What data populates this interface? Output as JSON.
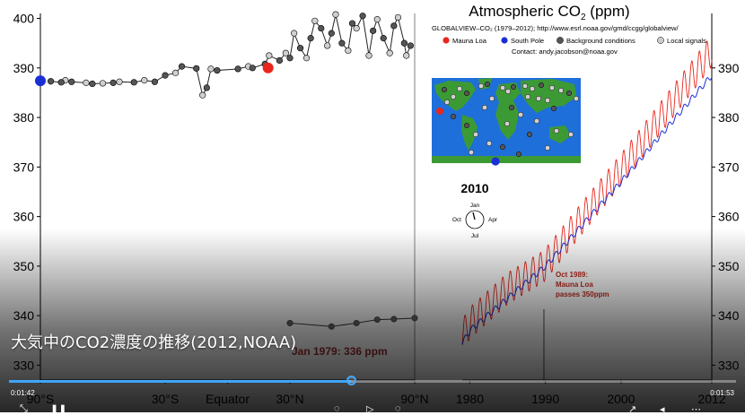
{
  "video": {
    "title": "大気中のCO2濃度の推移(2012,NOAA)",
    "time_elapsed": "0:01:42",
    "time_total": "0:01:53",
    "progress": 0.47
  },
  "header": {
    "title": "Atmospheric CO",
    "title_sub": "2",
    "title_unit": " (ppm)",
    "source": "GLOBALVIEW–CO₂ (1979–2012); http://www.esrl.noaa.gov/gmd/ccgg/globalview/",
    "contact": "Contact: andy.jacobson@noaa.gov"
  },
  "legend": [
    {
      "label": "Mauna Loa",
      "color": "#e8261c"
    },
    {
      "label": "South Pole",
      "color": "#1b2fd6"
    },
    {
      "label": "Background conditions",
      "color": "#555555"
    },
    {
      "label": "Local signals",
      "color": "#cccccc"
    }
  ],
  "year_label": "2010",
  "clock": {
    "top": "Jan",
    "left": "Oct",
    "right": "Apr",
    "bottom": "Jul"
  },
  "annotations": {
    "oct1989": [
      "Oct 1989:",
      "Mauna Loa",
      "passes 350ppm"
    ],
    "jan1979": "Jan 1979: 336 ppm"
  },
  "chart_data": [
    {
      "type": "scatter",
      "title": "",
      "xlabel": "",
      "ylabel": "",
      "x_ticks": [
        "90°S",
        "30°S",
        "Equator",
        "30°N",
        "90°N"
      ],
      "y_ticks": [
        330,
        340,
        350,
        360,
        370,
        380,
        390,
        400
      ],
      "ylim": [
        327,
        401
      ],
      "series": [
        {
          "name": "Background conditions",
          "points": [
            [
              -85,
              387.3
            ],
            [
              -80,
              387.1
            ],
            [
              -75,
              387.2
            ],
            [
              -65,
              386.8
            ],
            [
              -55,
              387.0
            ],
            [
              -45,
              387.1
            ],
            [
              -35,
              387.2
            ],
            [
              -30,
              388.5
            ],
            [
              -22,
              390.3
            ],
            [
              -15,
              389.9
            ],
            [
              -10,
              386.0
            ],
            [
              -5,
              389.5
            ],
            [
              5,
              389.8
            ],
            [
              12,
              390.0
            ],
            [
              18,
              390.8
            ],
            [
              25,
              391.5
            ],
            [
              30,
              392.0
            ],
            [
              35,
              394.0
            ],
            [
              40,
              396.0
            ],
            [
              45,
              398.0
            ],
            [
              50,
              397.0
            ],
            [
              55,
              395.0
            ],
            [
              60,
              399.0
            ],
            [
              65,
              400.5
            ],
            [
              70,
              397.5
            ],
            [
              75,
              396.0
            ],
            [
              80,
              398.5
            ],
            [
              85,
              395.0
            ],
            [
              88,
              394.5
            ]
          ]
        },
        {
          "name": "Local signals",
          "points": [
            [
              -78,
              387.5
            ],
            [
              -68,
              387.0
            ],
            [
              -60,
              386.9
            ],
            [
              -52,
              387.2
            ],
            [
              -40,
              387.5
            ],
            [
              -25,
              389.0
            ],
            [
              -12,
              384.5
            ],
            [
              -8,
              389.8
            ],
            [
              10,
              390.3
            ],
            [
              20,
              392.5
            ],
            [
              28,
              393.0
            ],
            [
              32,
              397.0
            ],
            [
              38,
              392.0
            ],
            [
              42,
              399.5
            ],
            [
              48,
              394.5
            ],
            [
              52,
              400.8
            ],
            [
              58,
              393.5
            ],
            [
              62,
              398.0
            ],
            [
              68,
              392.5
            ],
            [
              72,
              399.8
            ],
            [
              78,
              393.0
            ],
            [
              82,
              400.2
            ],
            [
              86,
              392.5
            ]
          ]
        },
        {
          "name": "Mauna Loa",
          "points": [
            [
              19.5,
              390.0
            ]
          ]
        },
        {
          "name": "South Pole",
          "points": [
            [
              -90,
              387.4
            ]
          ]
        },
        {
          "name": "Jan 1979 profile",
          "points": [
            [
              30,
              338.5
            ],
            [
              50,
              337.8
            ],
            [
              62,
              338.5
            ],
            [
              72,
              339.2
            ],
            [
              80,
              339.3
            ],
            [
              90,
              339.5
            ]
          ]
        }
      ]
    },
    {
      "type": "line",
      "title": "",
      "xlabel": "",
      "ylabel": "",
      "x_ticks": [
        1980,
        1990,
        2000,
        2012
      ],
      "y_ticks": [
        330,
        340,
        350,
        360,
        370,
        380,
        390
      ],
      "xlim": [
        1979,
        2012
      ],
      "ylim": [
        327,
        401
      ],
      "series": [
        {
          "name": "Mauna Loa",
          "color": "#e8261c",
          "x": [
            1979,
            1980,
            1985,
            1989.8,
            1995,
            2000,
            2005,
            2010,
            2012
          ],
          "y": [
            336,
            338.5,
            345.5,
            350,
            360,
            369.5,
            379.5,
            389.5,
            393.5
          ],
          "amplitude": 3.2
        },
        {
          "name": "South Pole",
          "color": "#1b2fd6",
          "x": [
            1979,
            1980,
            1985,
            1990,
            1995,
            2000,
            2005,
            2010,
            2012
          ],
          "y": [
            334.5,
            337,
            343.5,
            350,
            358.5,
            367,
            376,
            385,
            388.5
          ],
          "amplitude": 0.6
        }
      ]
    }
  ]
}
